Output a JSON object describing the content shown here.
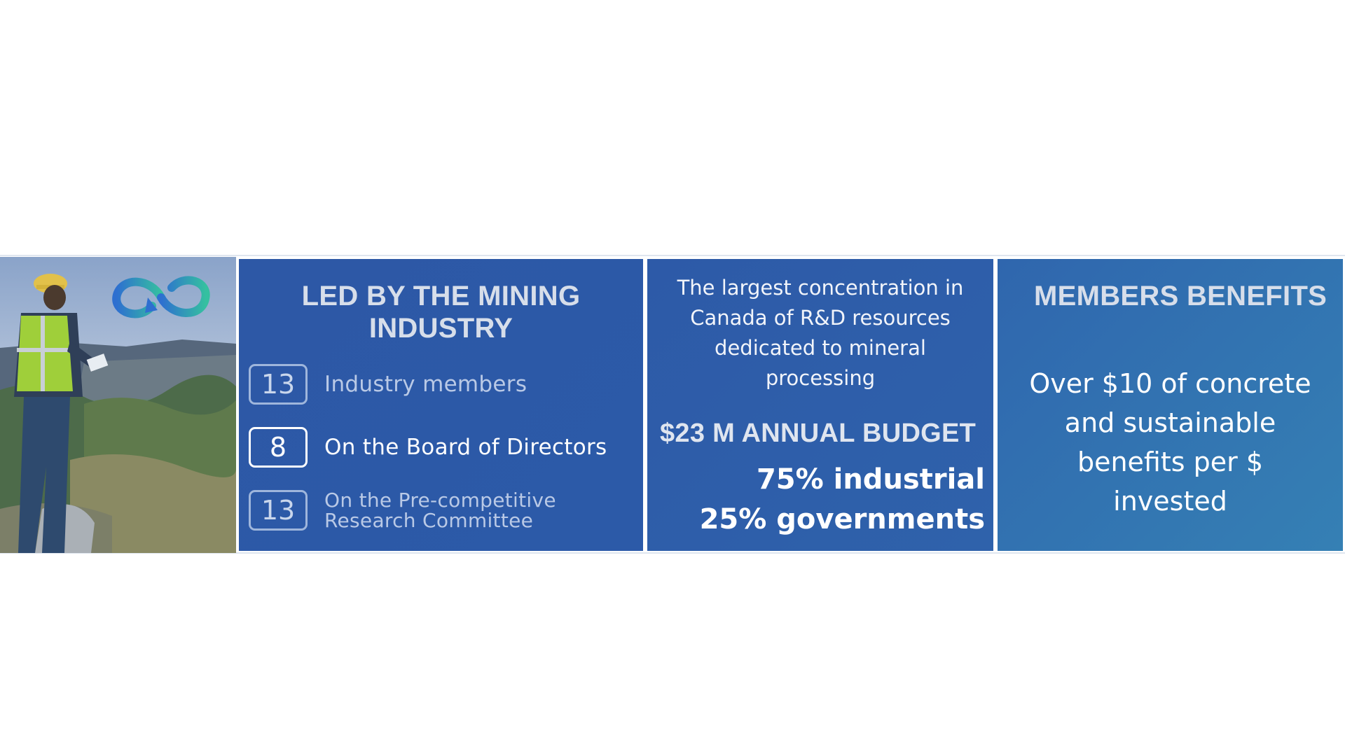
{
  "photo": {
    "alt_icon": "infinity-loop-logo-icon"
  },
  "card_mining": {
    "heading_line1": "LED BY THE MINING",
    "heading_line2": "INDUSTRY",
    "stats": [
      {
        "number": "13",
        "label": "Industry members"
      },
      {
        "number": "8",
        "label": "On the Board of Directors"
      },
      {
        "number": "13",
        "label_line1": "On the Pre-competitive",
        "label_line2": "Research Committee"
      }
    ]
  },
  "card_budget": {
    "desc_line1": "The largest concentration in",
    "desc_line2": "Canada of R&D resources",
    "desc_line3": "dedicated to mineral",
    "desc_line4": "processing",
    "budget": "$23 M ANNUAL BUDGET",
    "split_industrial": "75% industrial",
    "split_governments": "25% governments"
  },
  "card_benefits": {
    "heading": "MEMBERS BENEFITS",
    "line1": "Over $10 of concrete",
    "line2": "and sustainable",
    "line3": "benefits per $",
    "line4": "invested"
  },
  "colors": {
    "card_blue": "#2c5aa8",
    "card_teal": "#3580b4",
    "logo_gradient_start": "#2e6fd0",
    "logo_gradient_end": "#35c0a0"
  }
}
